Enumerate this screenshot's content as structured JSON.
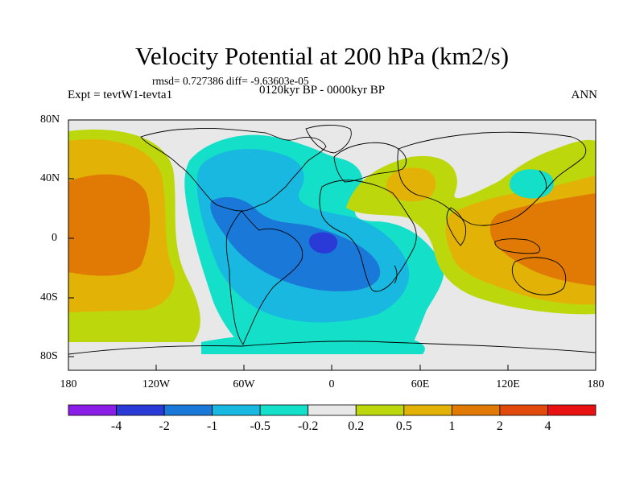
{
  "title": "Velocity Potential at 200 hPa (km2/s)",
  "stats": "rmsd= 0.727386 diff= -9.63603e-05",
  "experiment": "Expt = tevtW1-tevta1",
  "period": "0120kyr BP - 0000kyr BP",
  "season": "ANN",
  "lat_labels": [
    "80N",
    "40N",
    "0",
    "40S",
    "80S"
  ],
  "lon_labels": [
    "180",
    "120W",
    "60W",
    "0",
    "60E",
    "120E",
    "180"
  ],
  "colorbar": {
    "labels": [
      "-4",
      "-2",
      "-1",
      "-0.5",
      "-0.2",
      "0.2",
      "0.5",
      "1",
      "2",
      "4"
    ],
    "colors": [
      "#8a1ee6",
      "#2a3ad6",
      "#1a78d8",
      "#19b8e0",
      "#14dfc9",
      "#e8e8e8",
      "#bcd80c",
      "#e2b206",
      "#e07a04",
      "#e24a0c",
      "#e81010"
    ]
  },
  "map_legend": {
    "negative_color_scale": [
      "#2a3ad6",
      "#1a78d8",
      "#19b8e0",
      "#14dfc9"
    ],
    "positive_color_scale": [
      "#bcd80c",
      "#e2b206",
      "#e07a04"
    ],
    "neutral_color": "#e8e8e8"
  }
}
